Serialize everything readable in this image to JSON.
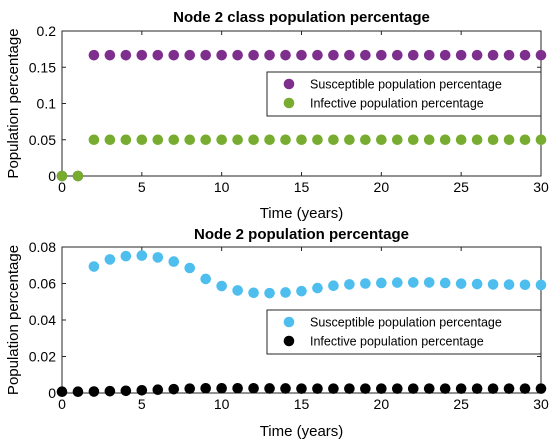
{
  "chart_data": [
    {
      "type": "scatter",
      "title": "Node 2 class population percentage",
      "xlabel": "Time (years)",
      "ylabel": "Population percentage",
      "xlim": [
        0,
        30
      ],
      "ylim": [
        0,
        0.2
      ],
      "xticks": [
        0,
        5,
        10,
        15,
        20,
        25,
        30
      ],
      "xtick_labels": [
        "0",
        "5",
        "10",
        "15",
        "20",
        "25",
        "30"
      ],
      "yticks": [
        0,
        0.05,
        0.1,
        0.15,
        0.2
      ],
      "ytick_labels": [
        "0",
        "0.05",
        "0.1",
        "0.15",
        "0.2"
      ],
      "grid": false,
      "legend_position": "center-right",
      "x": [
        0,
        1,
        2,
        3,
        4,
        5,
        6,
        7,
        8,
        9,
        10,
        11,
        12,
        13,
        14,
        15,
        16,
        17,
        18,
        19,
        20,
        21,
        22,
        23,
        24,
        25,
        26,
        27,
        28,
        29,
        30
      ],
      "series": [
        {
          "name": "Susceptible population percentage",
          "color": "#7e2f8e",
          "values": [
            0,
            0,
            0.1667,
            0.1667,
            0.1667,
            0.1667,
            0.1667,
            0.1667,
            0.1667,
            0.1667,
            0.1667,
            0.1667,
            0.1667,
            0.1667,
            0.1667,
            0.1667,
            0.1667,
            0.1667,
            0.1667,
            0.1667,
            0.1667,
            0.1667,
            0.1667,
            0.1667,
            0.1667,
            0.1667,
            0.1667,
            0.1667,
            0.1667,
            0.1667,
            0.1667
          ]
        },
        {
          "name": "Infective population percentage",
          "color": "#77ac30",
          "values": [
            0,
            0,
            0.05,
            0.05,
            0.05,
            0.05,
            0.05,
            0.05,
            0.05,
            0.05,
            0.05,
            0.05,
            0.05,
            0.05,
            0.05,
            0.05,
            0.05,
            0.05,
            0.05,
            0.05,
            0.05,
            0.05,
            0.05,
            0.05,
            0.05,
            0.05,
            0.05,
            0.05,
            0.05,
            0.05,
            0.05
          ]
        }
      ]
    },
    {
      "type": "scatter",
      "title": "Node 2 population percentage",
      "xlabel": "Time (years)",
      "ylabel": "Population percentage",
      "xlim": [
        0,
        30
      ],
      "ylim": [
        0,
        0.08
      ],
      "xticks": [
        0,
        5,
        10,
        15,
        20,
        25,
        30
      ],
      "xtick_labels": [
        "0",
        "5",
        "10",
        "15",
        "20",
        "25",
        "30"
      ],
      "yticks": [
        0,
        0.02,
        0.04,
        0.06,
        0.08
      ],
      "ytick_labels": [
        "0",
        "0.02",
        "0.04",
        "0.06",
        "0.08"
      ],
      "grid": false,
      "legend_position": "center-right",
      "x": [
        0,
        1,
        2,
        3,
        4,
        5,
        6,
        7,
        8,
        9,
        10,
        11,
        12,
        13,
        14,
        15,
        16,
        17,
        18,
        19,
        20,
        21,
        22,
        23,
        24,
        25,
        26,
        27,
        28,
        29,
        30
      ],
      "series": [
        {
          "name": "Susceptible population percentage",
          "color": "#4dbeee",
          "values": [
            null,
            null,
            0.0693,
            0.0732,
            0.075,
            0.0753,
            0.0743,
            0.072,
            0.0685,
            0.0625,
            0.0586,
            0.0562,
            0.0549,
            0.0547,
            0.0551,
            0.0558,
            0.0575,
            0.0588,
            0.0595,
            0.06,
            0.0603,
            0.0605,
            0.0606,
            0.0606,
            0.0603,
            0.0599,
            0.0597,
            0.0595,
            0.0594,
            0.0593,
            0.0592
          ]
        },
        {
          "name": "Infective population percentage",
          "color": "#000000",
          "values": [
            0.0007,
            0.0007,
            0.0008,
            0.001,
            0.0012,
            0.0015,
            0.0018,
            0.0021,
            0.0024,
            0.0026,
            0.0026,
            0.0026,
            0.0026,
            0.0025,
            0.0025,
            0.0024,
            0.0024,
            0.0024,
            0.0024,
            0.0024,
            0.0024,
            0.0024,
            0.0024,
            0.0024,
            0.0024,
            0.0024,
            0.0024,
            0.0024,
            0.0024,
            0.0024,
            0.0024
          ]
        }
      ]
    }
  ]
}
